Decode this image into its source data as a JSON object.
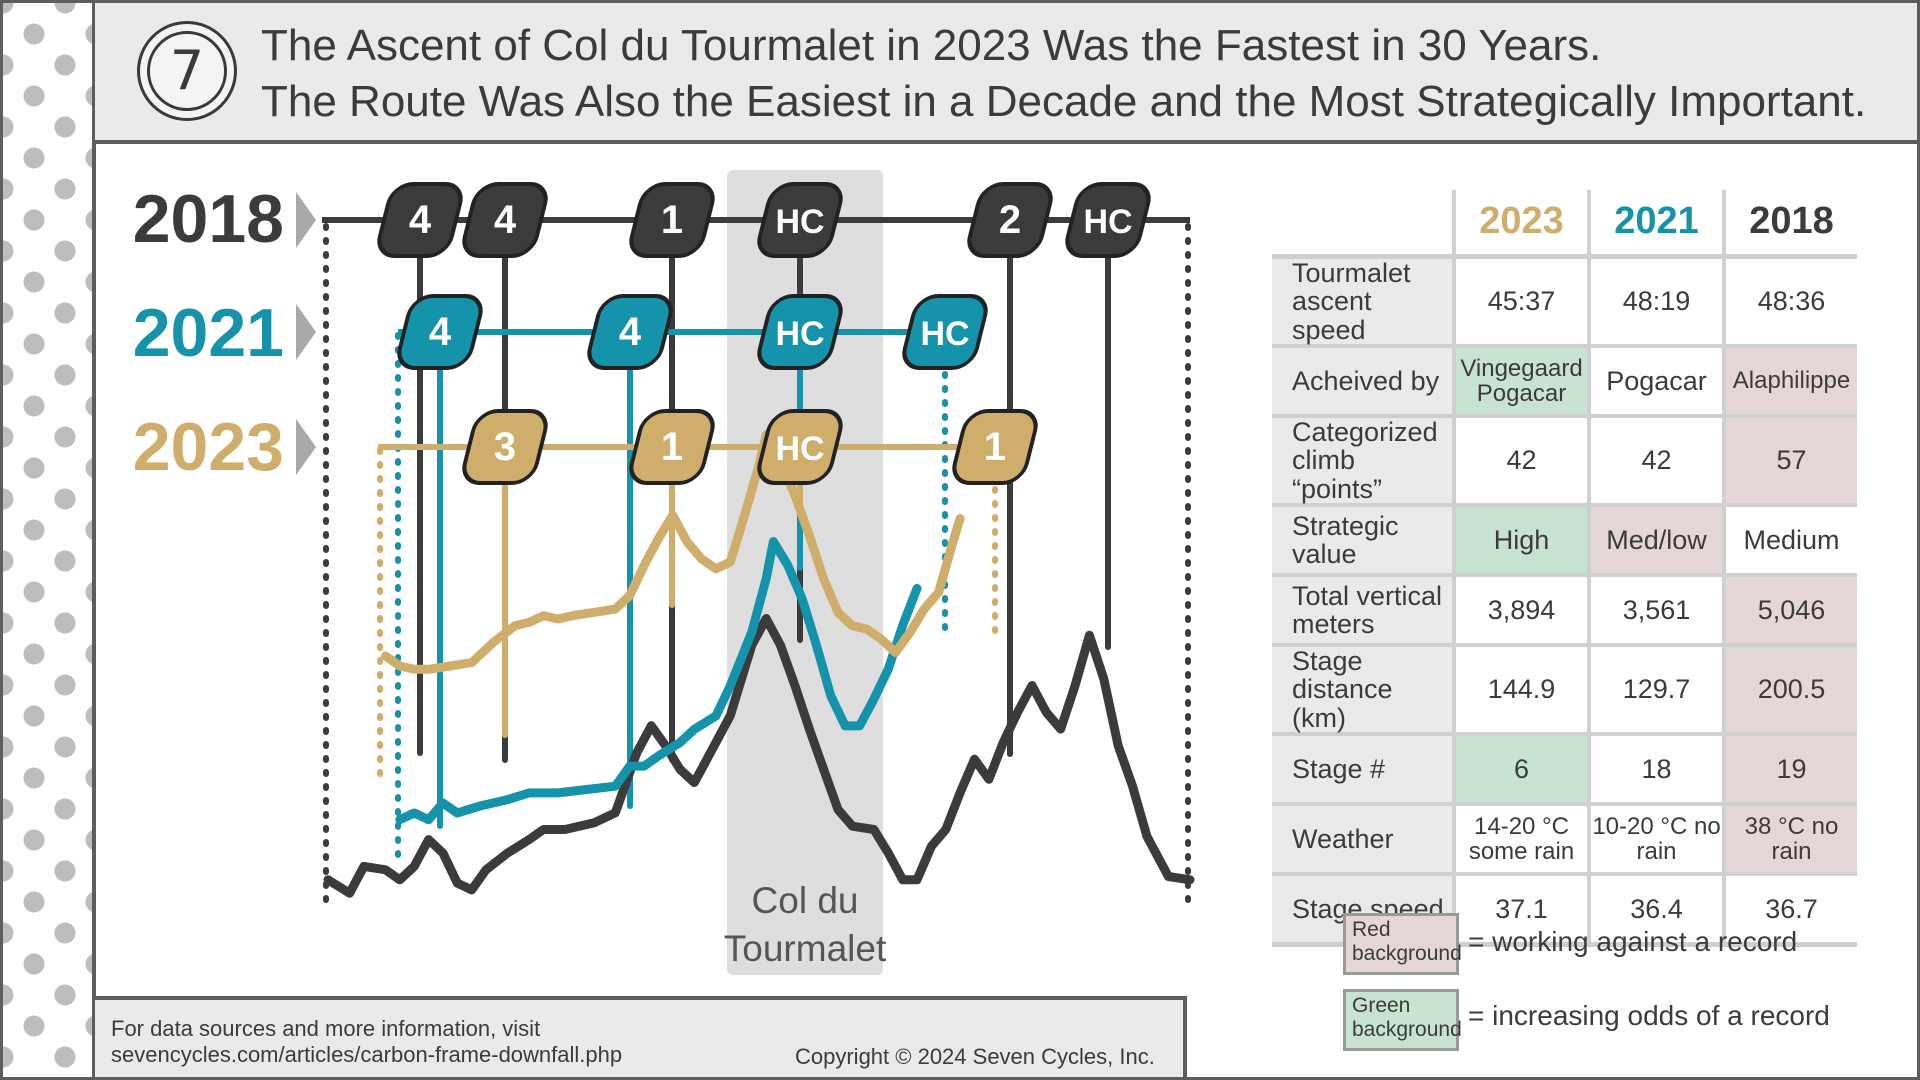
{
  "title": {
    "line1": "The Ascent of Col du Tourmalet in 2023 Was the Fastest in 30 Years.",
    "line2": "The Route Was Also the Easiest in a Decade and the Most Strategically Important."
  },
  "logo": {
    "text": "7",
    "icon": "seven-cycles-logo-icon"
  },
  "colors": {
    "y2018": "#3b3b3b",
    "y2021": "#1593ab",
    "y2023": "#cfae6c",
    "highlight": "#dedede",
    "red_bg": "#e5d6d7",
    "green_bg": "#c8e3d2"
  },
  "chart_data": {
    "type": "line",
    "title": "Stage elevation profiles with categorized climbs",
    "highlight_label_line1": "Col du",
    "highlight_label_line2": "Tourmalet",
    "series": [
      {
        "name": "2018",
        "label": "2018",
        "color": "#3b3b3b",
        "climbs": [
          "4",
          "4",
          "1",
          "HC",
          "2",
          "HC"
        ],
        "profile": [
          [
            0,
            12
          ],
          [
            3,
            8
          ],
          [
            5,
            16
          ],
          [
            8,
            15
          ],
          [
            10,
            12
          ],
          [
            12,
            16
          ],
          [
            14,
            24
          ],
          [
            16,
            20
          ],
          [
            18,
            11
          ],
          [
            20,
            9
          ],
          [
            22,
            15
          ],
          [
            25,
            20
          ],
          [
            28,
            24
          ],
          [
            30,
            27
          ],
          [
            33,
            27
          ],
          [
            37,
            29
          ],
          [
            40,
            32
          ],
          [
            43,
            50
          ],
          [
            45,
            58
          ],
          [
            47,
            52
          ],
          [
            49,
            45
          ],
          [
            51,
            41
          ],
          [
            52,
            45
          ],
          [
            56,
            61
          ],
          [
            59,
            82
          ],
          [
            61,
            90
          ],
          [
            63,
            82
          ],
          [
            65,
            70
          ],
          [
            67,
            57
          ],
          [
            69,
            45
          ],
          [
            71,
            33
          ],
          [
            73,
            28
          ],
          [
            76,
            27
          ],
          [
            78,
            20
          ],
          [
            80,
            12
          ],
          [
            82,
            12
          ],
          [
            84,
            22
          ],
          [
            86,
            27
          ],
          [
            88,
            38
          ],
          [
            90,
            48
          ],
          [
            92,
            42
          ],
          [
            94,
            53
          ],
          [
            96,
            62
          ],
          [
            98,
            70
          ],
          [
            100,
            62
          ],
          [
            102,
            57
          ],
          [
            104,
            70
          ],
          [
            106,
            85
          ],
          [
            108,
            72
          ],
          [
            110,
            52
          ],
          [
            112,
            40
          ],
          [
            114,
            25
          ],
          [
            117,
            13
          ],
          [
            120,
            12
          ]
        ]
      },
      {
        "name": "2021",
        "label": "2021",
        "color": "#1593ab",
        "climbs": [
          "4",
          "4",
          "HC",
          "HC"
        ],
        "profile": [
          [
            10,
            18
          ],
          [
            12,
            20
          ],
          [
            14,
            18
          ],
          [
            16,
            23
          ],
          [
            18,
            20
          ],
          [
            21,
            22
          ],
          [
            25,
            24
          ],
          [
            28,
            26
          ],
          [
            32,
            26
          ],
          [
            36,
            27
          ],
          [
            40,
            28
          ],
          [
            42,
            34
          ],
          [
            44,
            34
          ],
          [
            46,
            37
          ],
          [
            49,
            41
          ],
          [
            51,
            45
          ],
          [
            54,
            49
          ],
          [
            56,
            58
          ],
          [
            59,
            74
          ],
          [
            61,
            90
          ],
          [
            62,
            101
          ],
          [
            64,
            94
          ],
          [
            66,
            84
          ],
          [
            68,
            70
          ],
          [
            70,
            55
          ],
          [
            72,
            46
          ],
          [
            74,
            46
          ],
          [
            76,
            54
          ],
          [
            78,
            63
          ],
          [
            80,
            76
          ],
          [
            82,
            87
          ]
        ]
      },
      {
        "name": "2023",
        "label": "2023",
        "color": "#cfae6c",
        "climbs": [
          "3",
          "1",
          "HC",
          "1"
        ],
        "profile": [
          [
            8,
            46
          ],
          [
            10,
            43
          ],
          [
            12,
            42
          ],
          [
            14,
            42
          ],
          [
            17,
            43
          ],
          [
            20,
            44
          ],
          [
            23,
            50
          ],
          [
            26,
            55
          ],
          [
            28,
            56
          ],
          [
            30,
            58
          ],
          [
            32,
            57
          ],
          [
            34,
            58
          ],
          [
            37,
            59
          ],
          [
            40,
            60
          ],
          [
            42,
            64
          ],
          [
            44,
            73
          ],
          [
            46,
            81
          ],
          [
            48,
            88
          ],
          [
            50,
            80
          ],
          [
            52,
            75
          ],
          [
            54,
            72
          ],
          [
            56,
            74
          ],
          [
            58,
            88
          ],
          [
            60,
            103
          ],
          [
            61,
            112
          ],
          [
            63,
            104
          ],
          [
            65,
            94
          ],
          [
            67,
            82
          ],
          [
            69,
            69
          ],
          [
            71,
            59
          ],
          [
            73,
            55
          ],
          [
            75,
            54
          ],
          [
            77,
            51
          ],
          [
            79,
            47
          ],
          [
            81,
            53
          ],
          [
            83,
            60
          ],
          [
            85,
            65
          ],
          [
            87,
            80
          ],
          [
            88,
            87
          ]
        ]
      }
    ]
  },
  "table": {
    "years": [
      "2023",
      "2021",
      "2018"
    ],
    "rows": [
      {
        "label": "Tourmalet ascent speed",
        "values": [
          "45:37",
          "48:19",
          "48:36"
        ],
        "bg": [
          "white",
          "white",
          "white"
        ]
      },
      {
        "label": "Acheived by",
        "values": [
          "Vingegaard Pogacar",
          "Pogacar",
          "Alaphilippe"
        ],
        "bg": [
          "green",
          "white",
          "red"
        ]
      },
      {
        "label": "Categorized climb “points”",
        "values": [
          "42",
          "42",
          "57"
        ],
        "bg": [
          "white",
          "white",
          "red"
        ]
      },
      {
        "label": "Strategic value",
        "values": [
          "High",
          "Med/low",
          "Medium"
        ],
        "bg": [
          "green",
          "red",
          "white"
        ]
      },
      {
        "label": "Total vertical meters",
        "values": [
          "3,894",
          "3,561",
          "5,046"
        ],
        "bg": [
          "white",
          "white",
          "red"
        ]
      },
      {
        "label": "Stage distance (km)",
        "values": [
          "144.9",
          "129.7",
          "200.5"
        ],
        "bg": [
          "white",
          "white",
          "red"
        ]
      },
      {
        "label": "Stage #",
        "values": [
          "6",
          "18",
          "19"
        ],
        "bg": [
          "green",
          "white",
          "red"
        ]
      },
      {
        "label": "Weather",
        "values": [
          "14-20 °C some rain",
          "10-20 °C no rain",
          "38 °C no rain"
        ],
        "bg": [
          "white",
          "white",
          "red"
        ]
      },
      {
        "label": "Stage speed",
        "values": [
          "37.1",
          "36.4",
          "36.7"
        ],
        "bg": [
          "white",
          "white",
          "white"
        ]
      }
    ]
  },
  "legend": {
    "red_box": "Red background",
    "red_text": "= working against a record",
    "green_box": "Green background",
    "green_text": "= increasing odds of a record"
  },
  "footer": {
    "source_line1": "For data sources and more information, visit",
    "source_line2": "sevencycles.com/articles/carbon-frame-downfall.php",
    "copyright": "Copyright © 2024 Seven Cycles, Inc."
  }
}
